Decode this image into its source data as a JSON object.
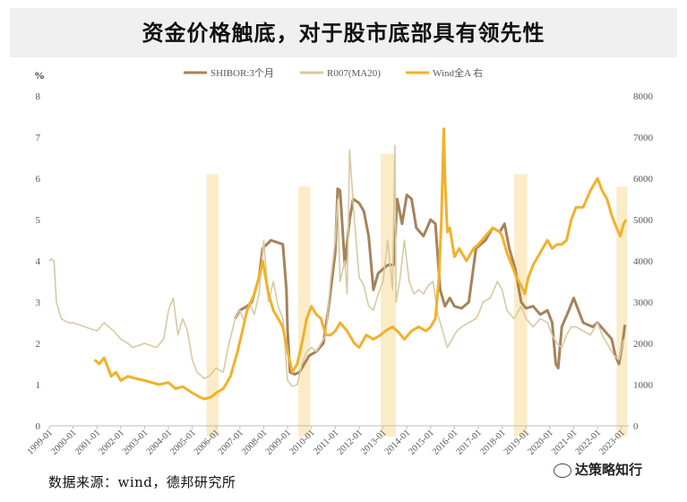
{
  "title": "资金价格触底，对于股市底部具有领先性",
  "source": "数据来源：wind，德邦研究所",
  "watermark": "达策略知行",
  "chart_data": {
    "type": "line",
    "ylabel_left": "%",
    "ylim_left": [
      0,
      8
    ],
    "ylim_right": [
      0,
      8000
    ],
    "left_ticks": [
      "0",
      "1",
      "2",
      "3",
      "4",
      "5",
      "6",
      "7",
      "8"
    ],
    "right_ticks": [
      "0",
      "1000",
      "2000",
      "3000",
      "4000",
      "5000",
      "6000",
      "7000",
      "8000"
    ],
    "x_ticks": [
      "1999-01",
      "2000-01",
      "2001-01",
      "2002-01",
      "2003-01",
      "2004-01",
      "2005-01",
      "2006-01",
      "2007-01",
      "2008-01",
      "2009-01",
      "2010-01",
      "2011-01",
      "2012-01",
      "2013-01",
      "2014-01",
      "2015-01",
      "2016-01",
      "2017-01",
      "2018-01",
      "2019-01",
      "2020-01",
      "2021-01",
      "2022-01",
      "2023-01"
    ],
    "legend_position": "top",
    "colors": {
      "shibor": "#a5835b",
      "r007": "#d8c9a2",
      "wind": "#f2b12a",
      "band": "#fbecc8"
    },
    "highlight_bands": [
      {
        "start": 2005.6,
        "end": 2006.1,
        "top": 6.1
      },
      {
        "start": 2009.45,
        "end": 2009.95,
        "top": 5.8
      },
      {
        "start": 2012.9,
        "end": 2013.55,
        "top": 6.6
      },
      {
        "start": 2018.5,
        "end": 2019.05,
        "top": 6.1
      },
      {
        "start": 2022.8,
        "end": 2023.25,
        "top": 5.8
      }
    ],
    "series": [
      {
        "name": "SHIBOR:3个月",
        "axis": "left",
        "x": [
          2006.8,
          2007.0,
          2007.3,
          2007.5,
          2007.8,
          2007.95,
          2008.3,
          2008.8,
          2008.95,
          2009.0,
          2009.1,
          2009.3,
          2009.5,
          2009.7,
          2009.9,
          2010.2,
          2010.5,
          2010.7,
          2011.0,
          2011.1,
          2011.2,
          2011.4,
          2011.6,
          2011.75,
          2012.0,
          2012.2,
          2012.4,
          2012.6,
          2012.8,
          2013.0,
          2013.2,
          2013.45,
          2013.6,
          2013.8,
          2014.0,
          2014.2,
          2014.4,
          2014.7,
          2015.0,
          2015.2,
          2015.4,
          2015.6,
          2015.8,
          2016.0,
          2016.3,
          2016.6,
          2016.9,
          2017.1,
          2017.3,
          2017.6,
          2017.9,
          2018.1,
          2018.3,
          2018.55,
          2018.8,
          2019.0,
          2019.3,
          2019.6,
          2019.9,
          2020.1,
          2020.25,
          2020.35,
          2020.5,
          2020.8,
          2021.0,
          2021.4,
          2021.8,
          2022.0,
          2022.3,
          2022.6,
          2022.75,
          2022.9,
          2023.05,
          2023.15
        ],
        "y": [
          2.6,
          2.8,
          2.9,
          3.0,
          3.6,
          4.3,
          4.5,
          4.4,
          3.3,
          2.3,
          1.3,
          1.25,
          1.3,
          1.5,
          1.7,
          1.8,
          2.0,
          2.8,
          4.2,
          5.75,
          5.7,
          3.9,
          5.0,
          5.5,
          5.4,
          5.2,
          4.6,
          3.3,
          3.7,
          3.8,
          3.9,
          3.9,
          5.5,
          4.9,
          5.6,
          5.5,
          4.8,
          4.6,
          5.0,
          4.9,
          3.3,
          2.9,
          3.1,
          2.9,
          2.85,
          3.0,
          4.3,
          4.4,
          4.5,
          4.8,
          4.7,
          4.9,
          4.3,
          3.8,
          3.0,
          2.85,
          2.9,
          2.7,
          2.8,
          2.5,
          1.5,
          1.4,
          2.4,
          2.8,
          3.1,
          2.5,
          2.4,
          2.5,
          2.3,
          2.1,
          1.7,
          1.5,
          2.0,
          2.45
        ]
      },
      {
        "name": "R007(MA20)",
        "axis": "left",
        "x": [
          1999.0,
          1999.1,
          1999.2,
          1999.3,
          1999.5,
          1999.8,
          2000.0,
          2000.5,
          2001.0,
          2001.3,
          2001.7,
          2002.0,
          2002.3,
          2002.5,
          2003.0,
          2003.5,
          2003.8,
          2004.0,
          2004.2,
          2004.4,
          2004.6,
          2004.8,
          2005.0,
          2005.2,
          2005.5,
          2005.7,
          2006.0,
          2006.3,
          2006.5,
          2006.8,
          2007.0,
          2007.2,
          2007.4,
          2007.6,
          2007.8,
          2008.0,
          2008.2,
          2008.4,
          2008.6,
          2008.8,
          2009.0,
          2009.2,
          2009.4,
          2009.6,
          2009.8,
          2010.0,
          2010.2,
          2010.4,
          2010.6,
          2010.8,
          2011.0,
          2011.1,
          2011.2,
          2011.4,
          2011.5,
          2011.6,
          2011.8,
          2012.0,
          2012.2,
          2012.4,
          2012.6,
          2012.8,
          2013.0,
          2013.2,
          2013.4,
          2013.5,
          2013.55,
          2013.7,
          2013.9,
          2014.1,
          2014.3,
          2014.5,
          2014.7,
          2014.9,
          2015.1,
          2015.3,
          2015.5,
          2015.7,
          2015.9,
          2016.1,
          2016.3,
          2016.6,
          2016.9,
          2017.0,
          2017.2,
          2017.5,
          2017.8,
          2018.0,
          2018.2,
          2018.5,
          2018.8,
          2019.0,
          2019.3,
          2019.6,
          2019.9,
          2020.1,
          2020.3,
          2020.5,
          2020.7,
          2020.9,
          2021.1,
          2021.4,
          2021.7,
          2022.0,
          2022.2,
          2022.5,
          2022.7,
          2022.9,
          2023.1
        ],
        "y": [
          4.0,
          4.05,
          4.0,
          3.0,
          2.6,
          2.5,
          2.5,
          2.4,
          2.3,
          2.5,
          2.3,
          2.1,
          2.0,
          1.9,
          2.0,
          1.9,
          2.1,
          2.8,
          3.1,
          2.2,
          2.6,
          2.3,
          1.6,
          1.3,
          1.15,
          1.2,
          1.4,
          1.3,
          1.9,
          2.6,
          2.8,
          2.5,
          3.0,
          2.7,
          3.2,
          4.5,
          3.0,
          3.5,
          2.9,
          2.6,
          1.1,
          0.95,
          1.0,
          1.5,
          1.8,
          1.9,
          1.8,
          2.0,
          2.2,
          3.5,
          4.5,
          5.5,
          3.5,
          4.0,
          3.2,
          6.7,
          5.0,
          3.6,
          3.4,
          2.9,
          2.8,
          3.2,
          3.5,
          4.5,
          3.3,
          6.8,
          3.0,
          3.5,
          4.5,
          3.5,
          3.2,
          3.3,
          3.2,
          3.4,
          3.5,
          2.7,
          2.3,
          1.9,
          2.1,
          2.3,
          2.4,
          2.5,
          2.6,
          2.7,
          3.0,
          3.1,
          3.5,
          3.3,
          2.8,
          2.6,
          2.9,
          2.6,
          2.4,
          2.6,
          2.5,
          2.2,
          2.0,
          1.9,
          2.2,
          2.4,
          2.4,
          2.3,
          2.2,
          2.5,
          2.2,
          1.9,
          1.7,
          1.6,
          2.1
        ]
      },
      {
        "name": "Wind全A 右",
        "axis": "right",
        "x": [
          2000.9,
          2001.1,
          2001.3,
          2001.6,
          2001.8,
          2002.0,
          2002.3,
          2002.6,
          2003.0,
          2003.3,
          2003.6,
          2004.0,
          2004.3,
          2004.6,
          2005.0,
          2005.3,
          2005.5,
          2005.8,
          2006.0,
          2006.3,
          2006.6,
          2006.9,
          2007.1,
          2007.3,
          2007.6,
          2007.8,
          2007.95,
          2008.2,
          2008.4,
          2008.6,
          2008.8,
          2009.0,
          2009.2,
          2009.4,
          2009.6,
          2009.8,
          2010.0,
          2010.2,
          2010.4,
          2010.6,
          2010.8,
          2011.0,
          2011.2,
          2011.5,
          2011.8,
          2012.0,
          2012.3,
          2012.6,
          2012.9,
          2013.1,
          2013.4,
          2013.6,
          2013.9,
          2014.2,
          2014.5,
          2014.8,
          2015.0,
          2015.2,
          2015.35,
          2015.45,
          2015.55,
          2015.6,
          2015.7,
          2015.8,
          2016.0,
          2016.2,
          2016.5,
          2016.8,
          2017.0,
          2017.3,
          2017.6,
          2017.9,
          2018.0,
          2018.2,
          2018.4,
          2018.6,
          2018.8,
          2018.95,
          2019.1,
          2019.3,
          2019.6,
          2019.9,
          2020.1,
          2020.3,
          2020.5,
          2020.7,
          2020.9,
          2021.1,
          2021.4,
          2021.7,
          2022.0,
          2022.2,
          2022.4,
          2022.6,
          2022.8,
          2022.95,
          2023.1,
          2023.2
        ],
        "x_note": "",
        "y": [
          1600,
          1500,
          1650,
          1200,
          1300,
          1100,
          1200,
          1150,
          1100,
          1050,
          1000,
          1050,
          900,
          950,
          800,
          700,
          650,
          700,
          800,
          900,
          1200,
          1800,
          2300,
          2800,
          3200,
          3600,
          4000,
          3200,
          2800,
          2600,
          2400,
          1800,
          1300,
          1500,
          2000,
          2600,
          2900,
          2700,
          2600,
          2200,
          2200,
          2300,
          2500,
          2300,
          2000,
          1900,
          2200,
          2100,
          2200,
          2300,
          2400,
          2300,
          2100,
          2300,
          2400,
          2300,
          2400,
          2600,
          3600,
          5000,
          7200,
          6000,
          4700,
          4800,
          4100,
          4300,
          4000,
          4300,
          4400,
          4600,
          4800,
          4700,
          4600,
          4200,
          3900,
          3600,
          3400,
          3200,
          3600,
          3900,
          4200,
          4500,
          4300,
          4400,
          4400,
          4500,
          5000,
          5300,
          5300,
          5700,
          6000,
          5700,
          5500,
          5100,
          4800,
          4600,
          4900,
          5000
        ]
      }
    ]
  }
}
